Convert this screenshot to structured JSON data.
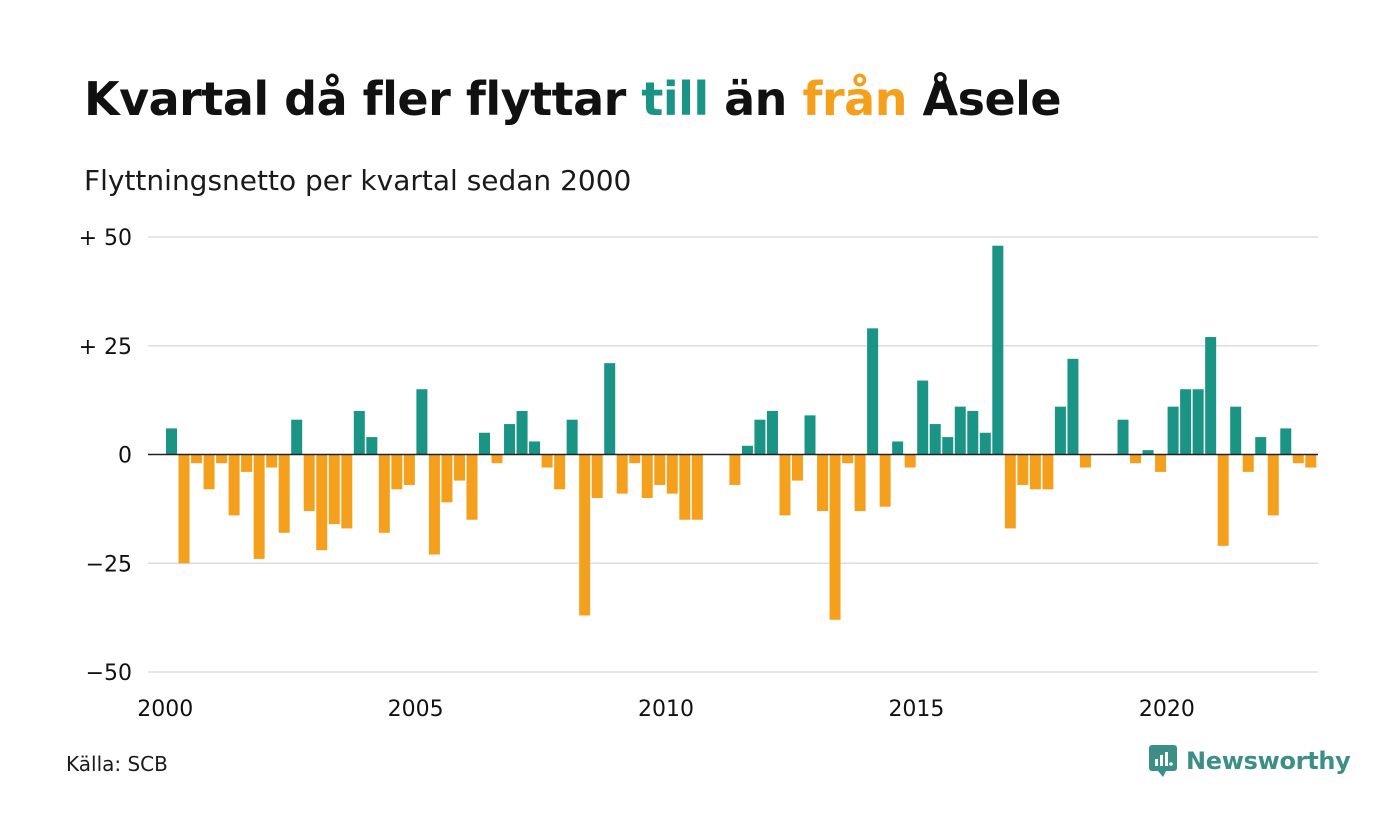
{
  "title": {
    "part1": "Kvartal då fler flyttar ",
    "highlight_in": "till",
    "part2": " än ",
    "highlight_out": "från",
    "part3": " Åsele"
  },
  "subtitle": "Flyttningsnetto per kvartal sedan 2000",
  "source": "Källa: SCB",
  "brand": {
    "name": "Newsworthy",
    "icon": "newsworthy-logo-icon",
    "color": "#3b8f86"
  },
  "colors": {
    "positive": "#1a9485",
    "negative": "#f5a01d",
    "grid": "#dddddd",
    "zero": "#222222"
  },
  "chart_data": {
    "type": "bar",
    "title": "Kvartal då fler flyttar till än från Åsele",
    "subtitle": "Flyttningsnetto per kvartal sedan 2000",
    "xlabel": "",
    "ylabel": "",
    "ylim": [
      -50,
      50
    ],
    "y_ticks": [
      {
        "value": 50,
        "label": "+ 50"
      },
      {
        "value": 25,
        "label": "+ 25"
      },
      {
        "value": 0,
        "label": "0"
      },
      {
        "value": -25,
        "label": "−25"
      },
      {
        "value": -50,
        "label": "−50"
      }
    ],
    "x_ticks": [
      "2000",
      "2005",
      "2010",
      "2015",
      "2020"
    ],
    "start_year": 2000,
    "grid": true,
    "legend": "none",
    "values": [
      6,
      -25,
      -2,
      -8,
      -2,
      -14,
      -4,
      -24,
      -3,
      -18,
      8,
      -13,
      -22,
      -16,
      -17,
      10,
      4,
      -18,
      -8,
      -7,
      15,
      -23,
      -11,
      -6,
      -15,
      5,
      -2,
      7,
      10,
      3,
      -3,
      -8,
      8,
      -37,
      -10,
      21,
      -9,
      -2,
      -10,
      -7,
      -9,
      -15,
      -15,
      0,
      0,
      -7,
      2,
      8,
      10,
      -14,
      -6,
      9,
      -13,
      -38,
      -2,
      -13,
      29,
      -12,
      3,
      -3,
      17,
      7,
      4,
      11,
      10,
      5,
      48,
      -17,
      -7,
      -8,
      -8,
      11,
      22,
      -3,
      0,
      0,
      8,
      -2,
      1,
      -4,
      11,
      15,
      15,
      27,
      -21,
      11,
      -4,
      4,
      -14,
      6,
      -2,
      -3
    ]
  }
}
